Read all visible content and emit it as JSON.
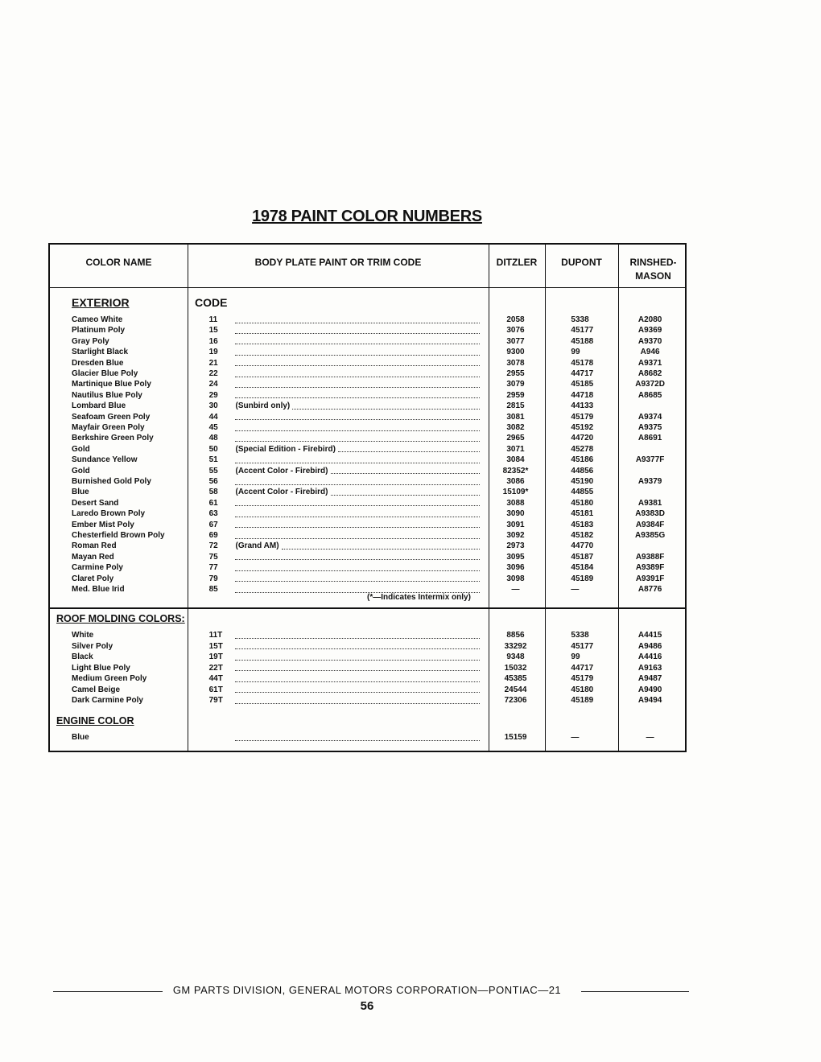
{
  "title": "1978 PAINT COLOR NUMBERS",
  "headers": {
    "color_name": "COLOR NAME",
    "code": "BODY PLATE PAINT OR TRIM CODE",
    "ditzler": "DITZLER",
    "dupont": "DUPONT",
    "rinshed": "RINSHED-MASON"
  },
  "exterior": {
    "heading": "EXTERIOR",
    "code_heading": "CODE",
    "rows": [
      {
        "name": "Cameo White",
        "code": "11",
        "desc": "",
        "ditzler": "2058",
        "dupont": "5338",
        "rinshed": "A2080"
      },
      {
        "name": "Platinum Poly",
        "code": "15",
        "desc": "",
        "ditzler": "3076",
        "dupont": "45177",
        "rinshed": "A9369"
      },
      {
        "name": "Gray Poly",
        "code": "16",
        "desc": "",
        "ditzler": "3077",
        "dupont": "45188",
        "rinshed": "A9370"
      },
      {
        "name": "Starlight Black",
        "code": "19",
        "desc": "",
        "ditzler": "9300",
        "dupont": "99",
        "rinshed": "A946"
      },
      {
        "name": "Dresden Blue",
        "code": "21",
        "desc": "",
        "ditzler": "3078",
        "dupont": "45178",
        "rinshed": "A9371"
      },
      {
        "name": "Glacier Blue Poly",
        "code": "22",
        "desc": "",
        "ditzler": "2955",
        "dupont": "44717",
        "rinshed": "A8682"
      },
      {
        "name": "Martinique Blue Poly",
        "code": "24",
        "desc": "",
        "ditzler": "3079",
        "dupont": "45185",
        "rinshed": "A9372D"
      },
      {
        "name": "Nautilus Blue Poly",
        "code": "29",
        "desc": "",
        "ditzler": "2959",
        "dupont": "44718",
        "rinshed": "A8685"
      },
      {
        "name": "Lombard Blue",
        "code": "30",
        "desc": "(Sunbird only)",
        "ditzler": "2815",
        "dupont": "44133",
        "rinshed": ""
      },
      {
        "name": "Seafoam Green Poly",
        "code": "44",
        "desc": "",
        "ditzler": "3081",
        "dupont": "45179",
        "rinshed": "A9374"
      },
      {
        "name": "Mayfair Green Poly",
        "code": "45",
        "desc": "",
        "ditzler": "3082",
        "dupont": "45192",
        "rinshed": "A9375"
      },
      {
        "name": "Berkshire Green Poly",
        "code": "48",
        "desc": "",
        "ditzler": "2965",
        "dupont": "44720",
        "rinshed": "A8691"
      },
      {
        "name": "Gold",
        "code": "50",
        "desc": "(Special Edition - Firebird)",
        "ditzler": "3071",
        "dupont": "45278",
        "rinshed": ""
      },
      {
        "name": "Sundance Yellow",
        "code": "51",
        "desc": "",
        "ditzler": "3084",
        "dupont": "45186",
        "rinshed": "A9377F"
      },
      {
        "name": "Gold",
        "code": "55",
        "desc": "(Accent Color - Firebird)",
        "ditzler": "82352*",
        "dupont": "44856",
        "rinshed": ""
      },
      {
        "name": "Burnished Gold Poly",
        "code": "56",
        "desc": "",
        "ditzler": "3086",
        "dupont": "45190",
        "rinshed": "A9379"
      },
      {
        "name": "Blue",
        "code": "58",
        "desc": "(Accent Color - Firebird)",
        "ditzler": "15109*",
        "dupont": "44855",
        "rinshed": ""
      },
      {
        "name": "Desert Sand",
        "code": "61",
        "desc": "",
        "ditzler": "3088",
        "dupont": "45180",
        "rinshed": "A9381"
      },
      {
        "name": "Laredo Brown Poly",
        "code": "63",
        "desc": "",
        "ditzler": "3090",
        "dupont": "45181",
        "rinshed": "A9383D"
      },
      {
        "name": "Ember Mist Poly",
        "code": "67",
        "desc": "",
        "ditzler": "3091",
        "dupont": "45183",
        "rinshed": "A9384F"
      },
      {
        "name": "Chesterfield Brown Poly",
        "code": "69",
        "desc": "",
        "ditzler": "3092",
        "dupont": "45182",
        "rinshed": "A9385G"
      },
      {
        "name": "Roman Red",
        "code": "72",
        "desc": "(Grand AM)",
        "ditzler": "2973",
        "dupont": "44770",
        "rinshed": ""
      },
      {
        "name": "Mayan Red",
        "code": "75",
        "desc": "",
        "ditzler": "3095",
        "dupont": "45187",
        "rinshed": "A9388F"
      },
      {
        "name": "Carmine Poly",
        "code": "77",
        "desc": "",
        "ditzler": "3096",
        "dupont": "45184",
        "rinshed": "A9389F"
      },
      {
        "name": "Claret Poly",
        "code": "79",
        "desc": "",
        "ditzler": "3098",
        "dupont": "45189",
        "rinshed": "A9391F"
      },
      {
        "name": "Med. Blue Irid",
        "code": "85",
        "desc": "",
        "ditzler": "—",
        "dupont": "—",
        "rinshed": "A8776"
      }
    ],
    "note": "(*—Indicates Intermix only)"
  },
  "roof": {
    "heading": "ROOF MOLDING COLORS:",
    "rows": [
      {
        "name": "White",
        "code": "11T",
        "desc": "",
        "ditzler": "8856",
        "dupont": "5338",
        "rinshed": "A4415"
      },
      {
        "name": "Silver Poly",
        "code": "15T",
        "desc": "",
        "ditzler": "33292",
        "dupont": "45177",
        "rinshed": "A9486"
      },
      {
        "name": "Black",
        "code": "19T",
        "desc": "",
        "ditzler": "9348",
        "dupont": "99",
        "rinshed": "A4416"
      },
      {
        "name": "Light Blue Poly",
        "code": "22T",
        "desc": "",
        "ditzler": "15032",
        "dupont": "44717",
        "rinshed": "A9163"
      },
      {
        "name": "Medium Green Poly",
        "code": "44T",
        "desc": "",
        "ditzler": "45385",
        "dupont": "45179",
        "rinshed": "A9487"
      },
      {
        "name": "Camel Beige",
        "code": "61T",
        "desc": "",
        "ditzler": "24544",
        "dupont": "45180",
        "rinshed": "A9490"
      },
      {
        "name": "Dark Carmine Poly",
        "code": "79T",
        "desc": "",
        "ditzler": "72306",
        "dupont": "45189",
        "rinshed": "A9494"
      }
    ]
  },
  "engine": {
    "heading": "ENGINE COLOR",
    "rows": [
      {
        "name": "Blue",
        "code": "",
        "desc": "",
        "ditzler": "15159",
        "dupont": "—",
        "rinshed": "—"
      }
    ]
  },
  "footer": {
    "text": "GM PARTS DIVISION, GENERAL MOTORS CORPORATION—PONTIAC—21",
    "page_number": "56"
  }
}
